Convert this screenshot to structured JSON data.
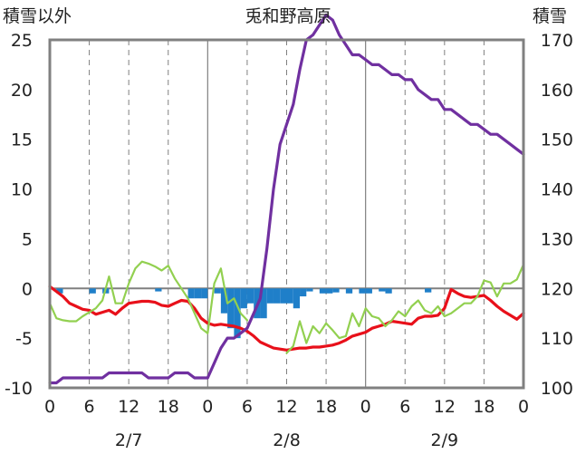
{
  "chart_data": {
    "type": "line",
    "title": "兎和野高原",
    "y_left_label": "積雪以外",
    "y_right_label": "積雪",
    "y_left_ticks": [
      "25",
      "20",
      "15",
      "10",
      "5",
      "0",
      "-5",
      "-10"
    ],
    "y_right_ticks": [
      "170",
      "160",
      "150",
      "140",
      "130",
      "120",
      "110",
      "100"
    ],
    "ylim_left": [
      -10,
      25
    ],
    "ylim_right": [
      100,
      170
    ],
    "x_ticks": [
      "0",
      "6",
      "12",
      "18",
      "0",
      "6",
      "12",
      "18",
      "0",
      "6",
      "12",
      "18",
      "0"
    ],
    "date_labels": [
      "2/7",
      "2/8",
      "2/9"
    ],
    "x_hours_range": [
      0,
      72
    ],
    "grid": "dashed vertical lines every 6 h, solid at day boundaries; solid zero line",
    "colors": {
      "precip_bars": "#1f7fc9",
      "temperature": "#e8101a",
      "humidity_green": "#92d050",
      "snow_depth": "#7030a0",
      "frame": "#808080",
      "zero_line": "#808080"
    },
    "series": [
      {
        "color_key": "precip_bars",
        "axis": "left",
        "kind": "bar",
        "x": [
          2,
          7,
          9,
          17,
          22,
          23,
          24,
          26,
          27,
          28,
          29,
          30,
          31,
          32,
          33,
          34,
          35,
          36,
          37,
          38,
          39,
          40,
          42,
          43,
          44,
          46,
          48,
          49,
          51,
          52,
          58
        ],
        "values": [
          -0.5,
          -0.5,
          -0.5,
          -0.3,
          -1,
          -1,
          -1,
          -0.5,
          -2.5,
          -4,
          -5,
          -2,
          -1.5,
          -3,
          -3,
          -1.5,
          -1.5,
          -1.5,
          -1.5,
          -2,
          -0.8,
          -0.3,
          -0.5,
          -0.5,
          -0.4,
          -0.5,
          -0.5,
          -0.5,
          -0.3,
          -0.5,
          -0.4
        ]
      },
      {
        "color_key": "temperature",
        "axis": "left",
        "x": [
          0,
          1,
          2,
          3,
          4,
          5,
          6,
          7,
          8,
          9,
          10,
          11,
          12,
          13,
          14,
          15,
          16,
          17,
          18,
          19,
          20,
          21,
          22,
          23,
          24,
          25,
          26,
          27,
          28,
          29,
          30,
          31,
          32,
          33,
          34,
          35,
          36,
          37,
          38,
          39,
          40,
          41,
          42,
          43,
          44,
          45,
          46,
          47,
          48,
          49,
          50,
          51,
          52,
          53,
          54,
          55,
          56,
          57,
          58,
          59,
          60,
          61,
          62,
          63,
          64,
          65,
          66,
          67,
          68,
          69,
          70,
          71,
          72
        ],
        "values": [
          0.2,
          -0.3,
          -0.8,
          -1.5,
          -1.8,
          -2.1,
          -2.2,
          -2.6,
          -2.4,
          -2.2,
          -2.6,
          -2.0,
          -1.5,
          -1.4,
          -1.3,
          -1.3,
          -1.4,
          -1.7,
          -1.8,
          -1.5,
          -1.2,
          -1.3,
          -2.0,
          -3.0,
          -3.5,
          -3.7,
          -3.6,
          -3.7,
          -3.8,
          -4.0,
          -4.3,
          -4.8,
          -5.4,
          -5.7,
          -6.0,
          -6.1,
          -6.2,
          -6.1,
          -6.0,
          -6.0,
          -5.9,
          -5.9,
          -5.8,
          -5.7,
          -5.5,
          -5.2,
          -4.8,
          -4.6,
          -4.4,
          -4.0,
          -3.8,
          -3.6,
          -3.3,
          -3.4,
          -3.5,
          -3.6,
          -3.0,
          -2.8,
          -2.8,
          -2.7,
          -2.0,
          -0.1,
          -0.5,
          -0.8,
          -0.9,
          -0.8,
          -0.7,
          -1.2,
          -1.8,
          -2.3,
          -2.7,
          -3.1,
          -2.5
        ]
      },
      {
        "color_key": "humidity_green",
        "axis": "left",
        "x": [
          0,
          1,
          2,
          3,
          4,
          5,
          6,
          7,
          8,
          9,
          10,
          11,
          12,
          13,
          14,
          15,
          16,
          17,
          18,
          19,
          20,
          21,
          22,
          23,
          24,
          25,
          26,
          27,
          28,
          29,
          30,
          31,
          32,
          33,
          34,
          35,
          36,
          37,
          38,
          39,
          40,
          41,
          42,
          43,
          44,
          45,
          46,
          47,
          48,
          49,
          50,
          51,
          52,
          53,
          54,
          55,
          56,
          57,
          58,
          59,
          60,
          61,
          62,
          63,
          64,
          65,
          66,
          67,
          68,
          69,
          70,
          71,
          72
        ],
        "values": [
          -1.5,
          -3.0,
          -3.2,
          -3.3,
          -3.3,
          -2.8,
          -2.4,
          -2.0,
          -1.2,
          1.2,
          -1.5,
          -1.5,
          0.5,
          2.0,
          2.7,
          2.5,
          2.2,
          1.8,
          2.3,
          1.0,
          0.0,
          -1.0,
          -2.5,
          -4.0,
          -4.5,
          0.5,
          2.0,
          -1.5,
          -1.0,
          -2.5,
          -3.2,
          null,
          null,
          null,
          null,
          null,
          null,
          null,
          null,
          null,
          null,
          null,
          null,
          null,
          null,
          null,
          null,
          null,
          null,
          null,
          null,
          null,
          null,
          null,
          null,
          null,
          null,
          null,
          null,
          null,
          null,
          null,
          null,
          null,
          null,
          null,
          null,
          null,
          null,
          null,
          null,
          null,
          null
        ]
      },
      {
        "color_key": "humidity_green",
        "axis": "left",
        "x": [
          30,
          31,
          32,
          33,
          34,
          35,
          36,
          37,
          38,
          39,
          40,
          41,
          42,
          43,
          44,
          45,
          46,
          47,
          48,
          49,
          50,
          51,
          52,
          53,
          54,
          55,
          56,
          57,
          58,
          59,
          60,
          61,
          62,
          63,
          64,
          65,
          66,
          67,
          68,
          69,
          70,
          71,
          72
        ],
        "values": [
          -3.2,
          null,
          null,
          null,
          null,
          null,
          -6.5,
          -5.8,
          -3.3,
          -5.5,
          -3.8,
          -4.5,
          -3.5,
          -4.2,
          -5.0,
          -4.8,
          -2.5,
          -3.8,
          -2.0,
          -2.8,
          -3.0,
          -3.8,
          -3.2,
          -2.3,
          -2.8,
          -1.8,
          -1.2,
          -2.2,
          -2.5,
          -1.8,
          -2.8,
          -2.5,
          -2.0,
          -1.5,
          -1.5,
          -0.8,
          0.8,
          0.6,
          -0.8,
          0.5,
          0.5,
          0.9,
          2.4
        ]
      },
      {
        "color_key": "snow_depth",
        "axis": "right",
        "x": [
          0,
          1,
          2,
          3,
          4,
          5,
          6,
          7,
          8,
          9,
          10,
          11,
          12,
          13,
          14,
          15,
          16,
          17,
          18,
          19,
          20,
          21,
          22,
          23,
          24,
          25,
          26,
          27,
          28,
          29,
          30,
          31,
          32,
          33,
          34,
          35,
          36,
          37,
          38,
          39,
          40,
          41,
          42,
          43,
          44,
          45,
          46,
          47,
          48,
          49,
          50,
          51,
          52,
          53,
          54,
          55,
          56,
          57,
          58,
          59,
          60,
          61,
          62,
          63,
          64,
          65,
          66,
          67,
          68,
          69,
          70,
          71,
          72
        ],
        "values": [
          101,
          101,
          102,
          102,
          102,
          102,
          102,
          102,
          102,
          103,
          103,
          103,
          103,
          103,
          103,
          102,
          102,
          102,
          102,
          103,
          103,
          103,
          102,
          102,
          102,
          105,
          108,
          110,
          110,
          111,
          112,
          115,
          118,
          128,
          140,
          149,
          153,
          157,
          164,
          170,
          171,
          173,
          175,
          174,
          171,
          169,
          167,
          167,
          166,
          165,
          165,
          164,
          163,
          163,
          162,
          162,
          160,
          159,
          158,
          158,
          156,
          156,
          155,
          154,
          153,
          153,
          152,
          151,
          151,
          150,
          149,
          148,
          147
        ]
      }
    ]
  }
}
